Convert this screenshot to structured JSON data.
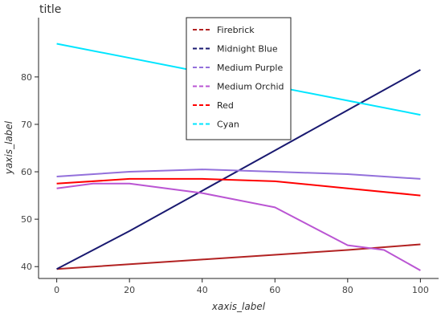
{
  "chart_data": {
    "type": "line",
    "title": "title",
    "xlabel": "xaxis_label",
    "ylabel": "yaxis_label",
    "xlim": [
      -5,
      105
    ],
    "ylim": [
      37.5,
      92.5
    ],
    "x_ticks": [
      0,
      20,
      40,
      60,
      80,
      100
    ],
    "y_ticks": [
      40,
      50,
      60,
      70,
      80
    ],
    "grid": false,
    "legend_position": "top-center",
    "series": [
      {
        "name": "Firebrick",
        "color": "#b22222",
        "points": [
          [
            0,
            39.5
          ],
          [
            20,
            40.5
          ],
          [
            40,
            41.5
          ],
          [
            60,
            42.5
          ],
          [
            80,
            43.5
          ],
          [
            100,
            44.7
          ]
        ]
      },
      {
        "name": "Midnight Blue",
        "color": "#191970",
        "points": [
          [
            0,
            39.5
          ],
          [
            20,
            47.5
          ],
          [
            40,
            56
          ],
          [
            60,
            64.5
          ],
          [
            80,
            73
          ],
          [
            100,
            81.5
          ]
        ]
      },
      {
        "name": "Medium Purple",
        "color": "#9370db",
        "points": [
          [
            0,
            59
          ],
          [
            20,
            60
          ],
          [
            40,
            60.5
          ],
          [
            60,
            60
          ],
          [
            80,
            59.5
          ],
          [
            100,
            58.5
          ]
        ]
      },
      {
        "name": "Medium Orchid",
        "color": "#ba55d3",
        "points": [
          [
            0,
            56.5
          ],
          [
            10,
            57.5
          ],
          [
            20,
            57.5
          ],
          [
            40,
            55.5
          ],
          [
            60,
            52.5
          ],
          [
            80,
            44.5
          ],
          [
            90,
            43.5
          ],
          [
            100,
            39.2
          ]
        ]
      },
      {
        "name": "Red",
        "color": "#ff0000",
        "points": [
          [
            0,
            57.5
          ],
          [
            20,
            58.5
          ],
          [
            40,
            58.5
          ],
          [
            60,
            58
          ],
          [
            80,
            56.5
          ],
          [
            100,
            55
          ]
        ]
      },
      {
        "name": "Cyan",
        "color": "#00e5ff",
        "points": [
          [
            0,
            87
          ],
          [
            20,
            84
          ],
          [
            40,
            81
          ],
          [
            60,
            78
          ],
          [
            80,
            75
          ],
          [
            100,
            72
          ]
        ]
      }
    ]
  }
}
